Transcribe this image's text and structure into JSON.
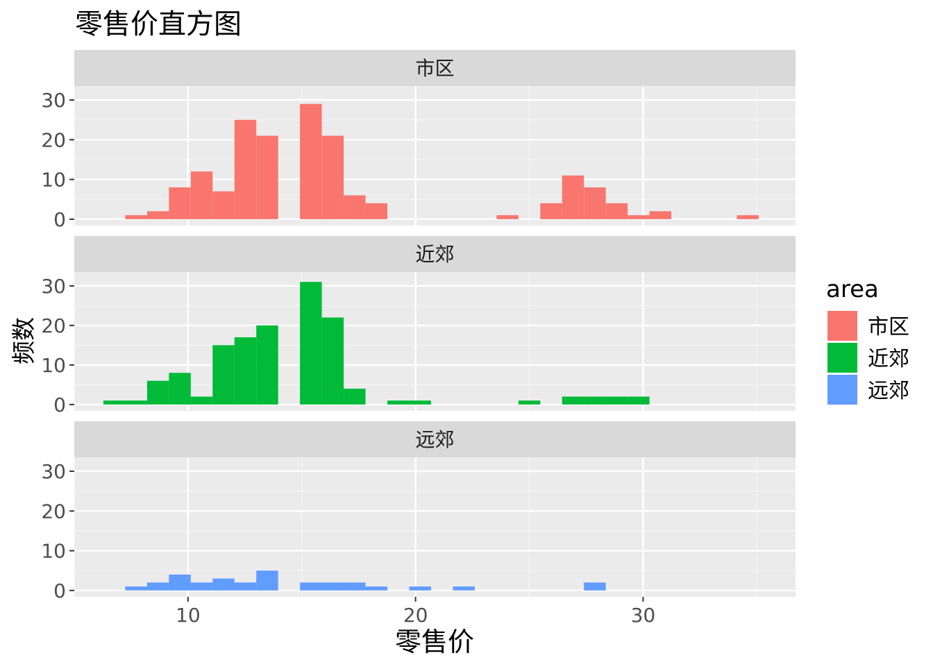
{
  "chart_data": {
    "type": "bar",
    "subtype": "faceted-histogram",
    "title": "零售价直方图",
    "xlabel": "零售价",
    "ylabel": "频数",
    "legend": {
      "title": "area",
      "position": "right",
      "entries": [
        {
          "name": "市区",
          "color": "#F8766D"
        },
        {
          "name": "近郊",
          "color": "#00BA38"
        },
        {
          "name": "远郊",
          "color": "#619CFF"
        }
      ]
    },
    "x_axis": {
      "range": [
        5.0,
        36.7
      ],
      "ticks": [
        10,
        20,
        30
      ]
    },
    "y_axis": {
      "range": [
        -1.6,
        33.5
      ],
      "ticks": [
        0,
        10,
        20,
        30
      ]
    },
    "grid": true,
    "bin_width": 0.96,
    "bin_start": 6.28,
    "facets": [
      {
        "name": "市区",
        "color": "#F8766D",
        "counts": [
          0,
          1,
          2,
          8,
          12,
          7,
          25,
          21,
          0,
          29,
          21,
          6,
          4,
          0,
          0,
          0,
          0,
          0,
          1,
          0,
          4,
          11,
          8,
          4,
          1,
          2,
          0,
          0,
          0,
          1
        ]
      },
      {
        "name": "近郊",
        "color": "#00BA38",
        "counts": [
          1,
          1,
          6,
          8,
          2,
          15,
          17,
          20,
          0,
          31,
          22,
          4,
          0,
          1,
          1,
          0,
          0,
          0,
          0,
          1,
          0,
          2,
          2,
          2,
          2,
          0,
          0,
          0,
          0,
          0
        ]
      },
      {
        "name": "远郊",
        "color": "#619CFF",
        "counts": [
          0,
          1,
          2,
          4,
          2,
          3,
          2,
          5,
          0,
          2,
          2,
          2,
          1,
          0,
          1,
          0,
          1,
          0,
          0,
          0,
          0,
          0,
          2,
          0,
          0,
          0,
          0,
          0,
          0,
          0
        ]
      }
    ]
  }
}
